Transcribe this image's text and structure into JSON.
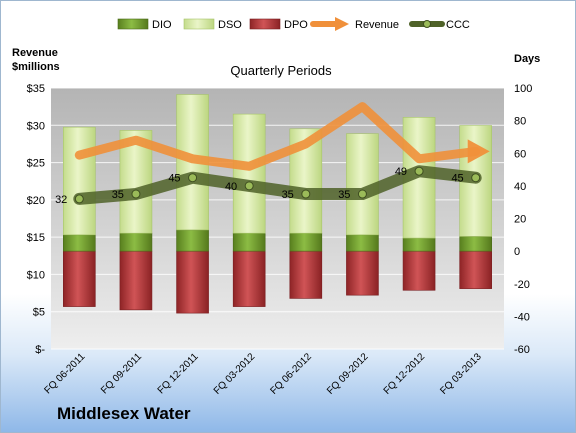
{
  "chart_data": {
    "type": "bar",
    "title": "Quarterly Periods",
    "categories": [
      "FQ 06-2011",
      "FQ 09-2011",
      "FQ 12-2011",
      "FQ 03-2012",
      "FQ 06-2012",
      "FQ 09-2012",
      "FQ 12-2012",
      "FQ 03-2013"
    ],
    "y_left": {
      "label_line1": "Revenue",
      "label_line2": "$millions",
      "range": [
        0,
        35
      ],
      "ticks": [
        "$-",
        "$5",
        "$10",
        "$15",
        "$20",
        "$25",
        "$30",
        "$35"
      ]
    },
    "y_right": {
      "label": "Days",
      "range": [
        -60,
        100
      ],
      "ticks": [
        "-60",
        "-40",
        "-20",
        "0",
        "20",
        "40",
        "60",
        "80",
        "100"
      ]
    },
    "series": [
      {
        "name": "DIO",
        "axis": "right",
        "values": [
          10,
          11,
          13,
          11,
          11,
          10,
          8,
          9
        ]
      },
      {
        "name": "DSO",
        "axis": "right",
        "values": [
          66,
          63,
          83,
          73,
          64,
          62,
          74,
          68
        ]
      },
      {
        "name": "DPO",
        "axis": "right",
        "values": [
          -34,
          -36,
          -38,
          -34,
          -29,
          -27,
          -24,
          -23
        ]
      },
      {
        "name": "Revenue",
        "axis": "left",
        "values": [
          26,
          28,
          25.5,
          24.5,
          27.5,
          32.5,
          25.5,
          26.5
        ]
      },
      {
        "name": "CCC",
        "axis": "right",
        "values": [
          32,
          35,
          45,
          40,
          35,
          35,
          49,
          45
        ]
      }
    ],
    "ccc_labels": [
      "32",
      "35",
      "45",
      "40",
      "35",
      "35",
      "49",
      "45"
    ],
    "legend_position": "top",
    "grid": true,
    "colors": {
      "DIO": "#6e9b2b",
      "DSO": "#d6e8a8",
      "DPO": "#b8393b",
      "Revenue": "#f0903a",
      "CCC": "#4f6228"
    }
  },
  "footer": {
    "company": "Middlesex Water"
  }
}
